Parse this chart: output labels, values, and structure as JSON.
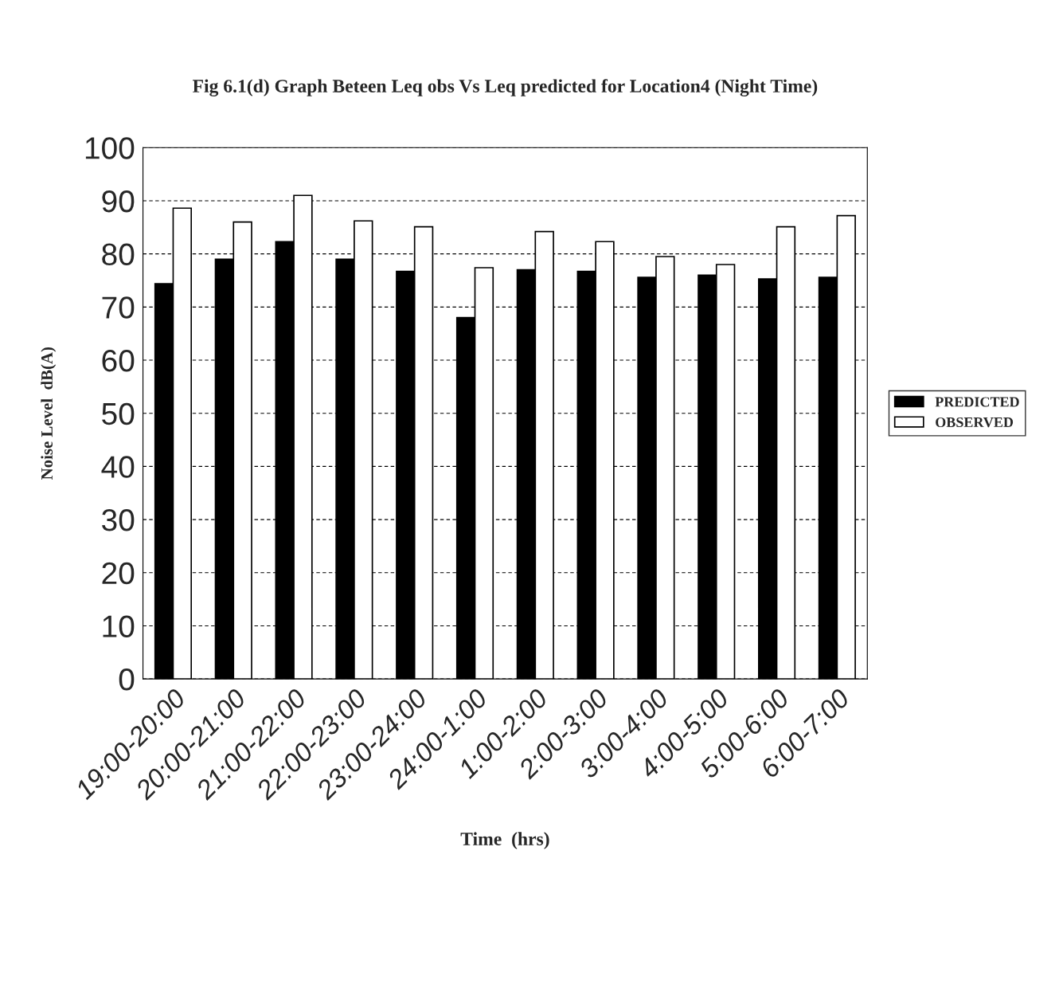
{
  "chart_data": {
    "type": "bar",
    "title": "Fig 6.1(d) Graph Beteen Leq obs Vs Leq predicted for Location4 (Night Time)",
    "xlabel": "Time  (hrs)",
    "ylabel": "Noise Level  dB(A)",
    "categories": [
      "19:00-20:00",
      "20:00-21:00",
      "21:00-22:00",
      "22:00-23:00",
      "23:00-24:00",
      "24:00-1:00",
      "1:00-2:00",
      "2:00-3:00",
      "3:00-4:00",
      "4:00-5:00",
      "5:00-6:00",
      "6:00-7:00"
    ],
    "series": [
      {
        "name": "PREDICTED",
        "color": "#000000",
        "values": [
          74.4,
          79,
          82.3,
          79,
          76.7,
          68,
          77,
          76.7,
          75.6,
          76,
          75.3,
          75.6
        ]
      },
      {
        "name": "OBSERVED",
        "color": "#ffffff",
        "values": [
          88.6,
          86,
          91,
          86.2,
          85.1,
          77.4,
          84.2,
          82.3,
          79.5,
          78,
          85.1,
          87.2
        ]
      }
    ],
    "ylim": [
      0,
      100
    ],
    "yticks": [
      0,
      10,
      20,
      30,
      40,
      50,
      60,
      70,
      80,
      90,
      100
    ],
    "grid": "y",
    "legend": "right"
  }
}
